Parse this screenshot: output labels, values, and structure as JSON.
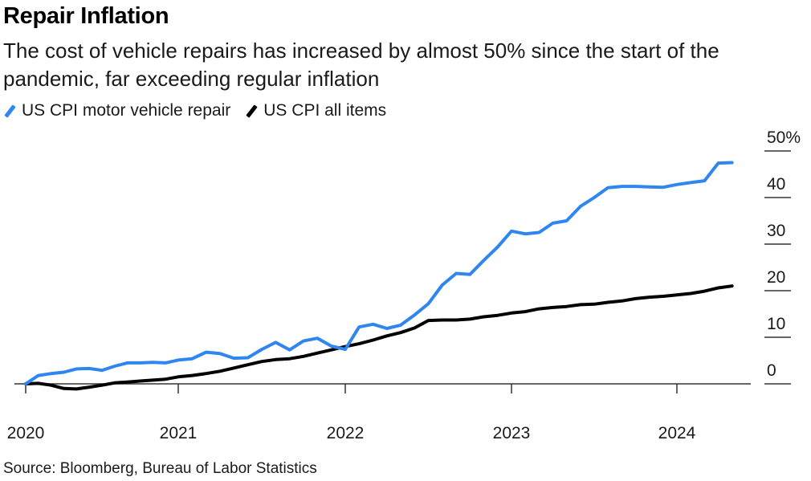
{
  "title": "Repair Inflation",
  "subtitle": "The cost of vehicle repairs has increased by almost 50% since the start of the pandemic, far exceeding regular inflation",
  "source": "Source: Bloomberg, Bureau of Labor Statistics",
  "colors": {
    "repair": "#2f86f0",
    "all_items": "#000000",
    "axis": "#333333"
  },
  "chart_data": {
    "type": "line",
    "title": "Repair Inflation",
    "xlabel": "",
    "ylabel": "",
    "ylim": [
      -1,
      52
    ],
    "xlim": [
      2020.0,
      2024.35
    ],
    "grid": false,
    "legend_position": "top-left",
    "y_ticks": [
      {
        "value": 50,
        "label": "50%"
      },
      {
        "value": 40,
        "label": "40"
      },
      {
        "value": 30,
        "label": "30"
      },
      {
        "value": 20,
        "label": "20"
      },
      {
        "value": 10,
        "label": "10"
      },
      {
        "value": 0,
        "label": "0"
      }
    ],
    "x_ticks": [
      {
        "value": 2020,
        "label": "2020"
      },
      {
        "value": 2021,
        "label": "2021"
      },
      {
        "value": 2022,
        "label": "2022"
      },
      {
        "value": 2023,
        "label": "2023"
      },
      {
        "value": 2024,
        "label": "2024"
      }
    ],
    "series": [
      {
        "name": "US CPI motor vehicle repair",
        "color": "#2f86f0",
        "x": [
          2020.0,
          2020.083,
          2020.167,
          2020.25,
          2020.333,
          2020.417,
          2020.5,
          2020.583,
          2020.667,
          2020.75,
          2020.833,
          2020.917,
          2021.0,
          2021.083,
          2021.167,
          2021.25,
          2021.333,
          2021.417,
          2021.5,
          2021.583,
          2021.667,
          2021.75,
          2021.833,
          2021.917,
          2022.0,
          2022.083,
          2022.167,
          2022.25,
          2022.333,
          2022.417,
          2022.5,
          2022.583,
          2022.667,
          2022.75,
          2022.833,
          2022.917,
          2023.0,
          2023.083,
          2023.167,
          2023.25,
          2023.333,
          2023.417,
          2023.5,
          2023.583,
          2023.667,
          2023.75,
          2023.833,
          2023.917,
          2024.0,
          2024.083,
          2024.167,
          2024.25,
          2024.333
        ],
        "values": [
          0,
          1.8,
          2.2,
          2.5,
          3.2,
          3.3,
          2.9,
          3.8,
          4.5,
          4.5,
          4.6,
          4.5,
          5.1,
          5.4,
          6.8,
          6.5,
          5.5,
          5.6,
          7.4,
          8.9,
          7.3,
          9.2,
          9.8,
          8.1,
          7.4,
          12.2,
          12.8,
          11.9,
          12.6,
          14.8,
          17.2,
          21.2,
          23.7,
          23.5,
          26.5,
          29.4,
          32.8,
          32.2,
          32.5,
          34.5,
          35.0,
          38.1,
          40.0,
          42.1,
          42.4,
          42.4,
          42.3,
          42.2,
          42.8,
          43.2,
          43.6,
          47.4,
          47.5
        ]
      },
      {
        "name": "US CPI all items",
        "color": "#000000",
        "x": [
          2020.0,
          2020.083,
          2020.167,
          2020.25,
          2020.333,
          2020.417,
          2020.5,
          2020.583,
          2020.667,
          2020.75,
          2020.833,
          2020.917,
          2021.0,
          2021.083,
          2021.167,
          2021.25,
          2021.333,
          2021.417,
          2021.5,
          2021.583,
          2021.667,
          2021.75,
          2021.833,
          2021.917,
          2022.0,
          2022.083,
          2022.167,
          2022.25,
          2022.333,
          2022.417,
          2022.5,
          2022.583,
          2022.667,
          2022.75,
          2022.833,
          2022.917,
          2023.0,
          2023.083,
          2023.167,
          2023.25,
          2023.333,
          2023.417,
          2023.5,
          2023.583,
          2023.667,
          2023.75,
          2023.833,
          2023.917,
          2024.0,
          2024.083,
          2024.167,
          2024.25,
          2024.333
        ],
        "values": [
          0,
          0.1,
          -0.3,
          -1.0,
          -1.1,
          -0.7,
          -0.3,
          0.2,
          0.4,
          0.6,
          0.8,
          1.0,
          1.5,
          1.8,
          2.2,
          2.7,
          3.4,
          4.1,
          4.8,
          5.2,
          5.4,
          5.9,
          6.6,
          7.3,
          8.0,
          8.6,
          9.4,
          10.3,
          11.0,
          12.0,
          13.6,
          13.7,
          13.7,
          13.9,
          14.4,
          14.7,
          15.2,
          15.5,
          16.1,
          16.4,
          16.6,
          17.0,
          17.1,
          17.5,
          17.8,
          18.3,
          18.6,
          18.8,
          19.1,
          19.4,
          19.9,
          20.6,
          21.0
        ]
      }
    ]
  }
}
